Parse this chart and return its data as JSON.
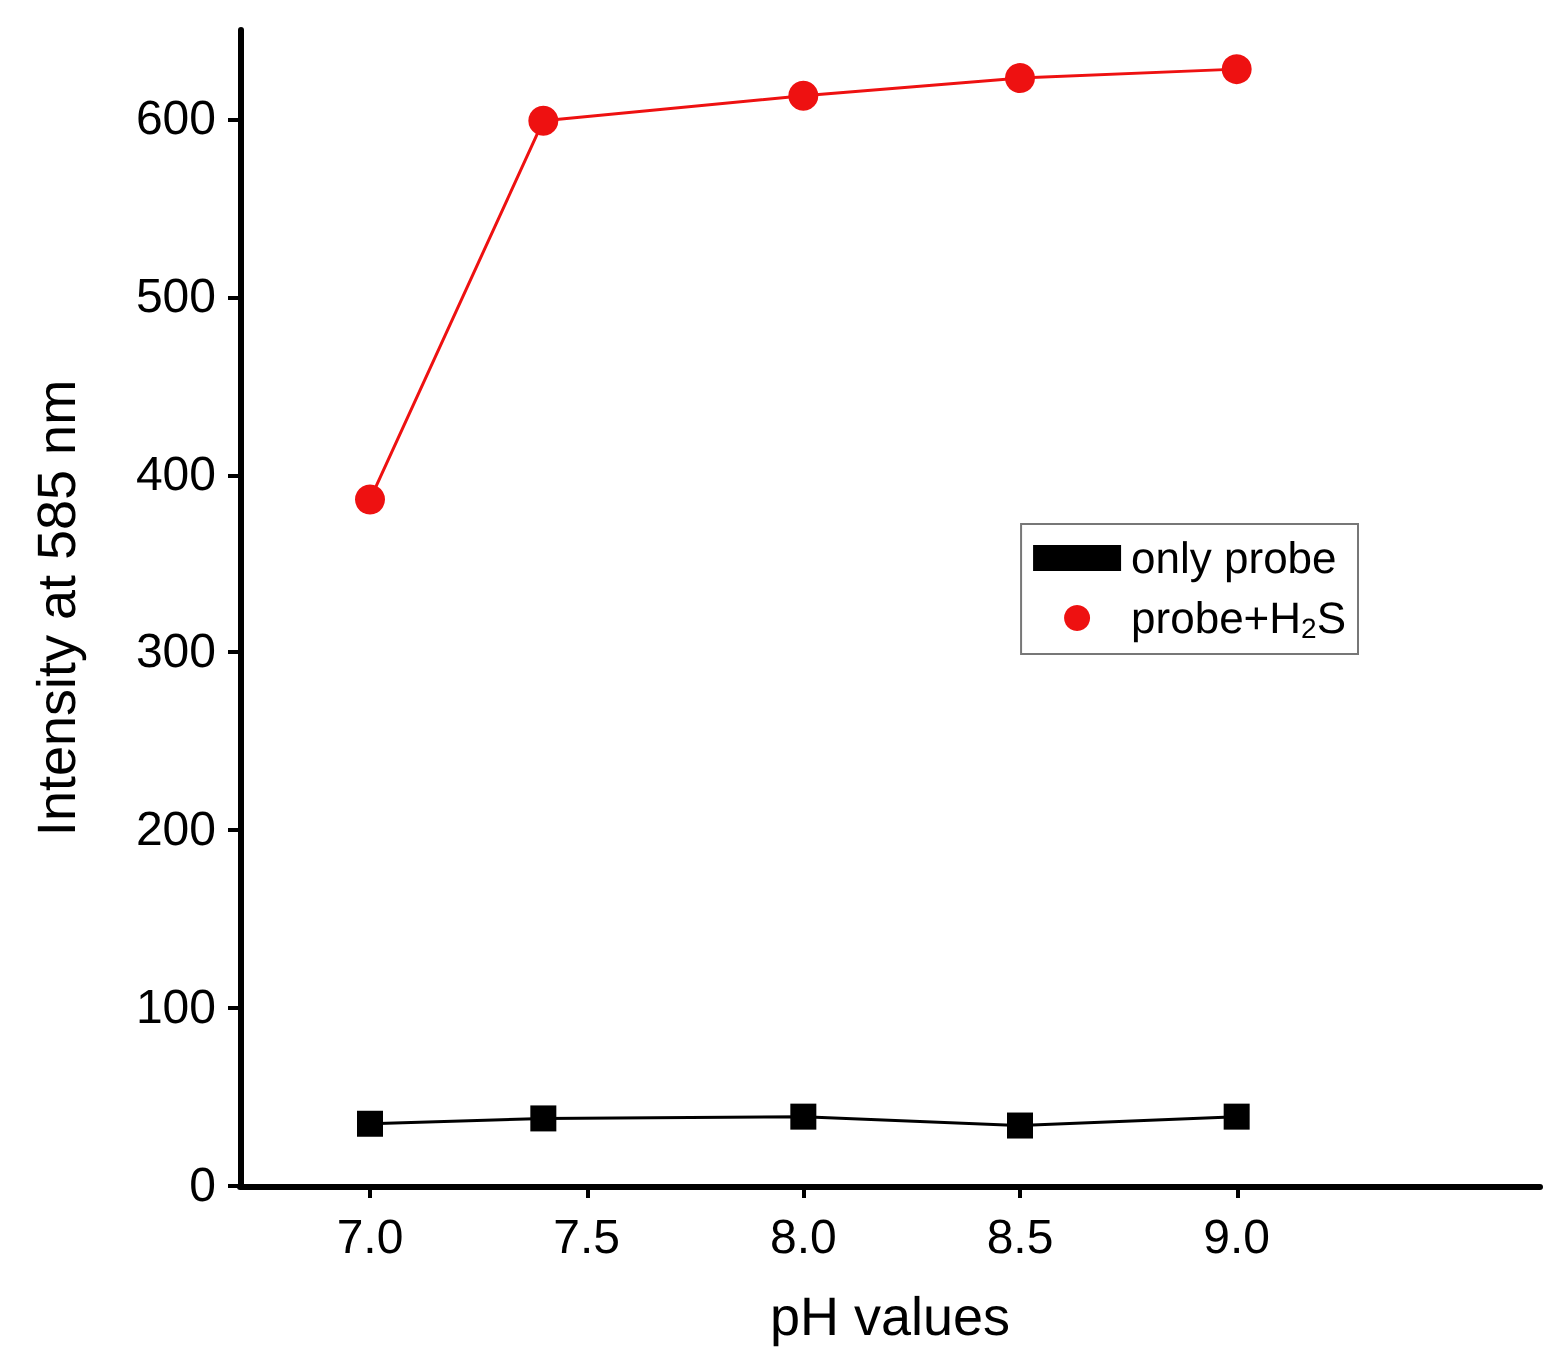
{
  "chart_data": {
    "type": "line",
    "xlabel": "pH values",
    "ylabel": "Intensity at 585 nm",
    "x": [
      7.0,
      7.4,
      8.0,
      8.5,
      9.0
    ],
    "series": [
      {
        "name": "only probe",
        "color": "#000000",
        "marker": "square",
        "values": [
          35,
          38,
          39,
          34,
          39
        ]
      },
      {
        "name": "probe+H$_{2}$S",
        "color": "#ee1111",
        "marker": "circle",
        "values": [
          386,
          599,
          613,
          623,
          628
        ]
      }
    ],
    "xlim": [
      6.7,
      9.7
    ],
    "xticks": [
      {
        "value": 7.0,
        "label": "7.0"
      },
      {
        "value": 7.5,
        "label": "7.5"
      },
      {
        "value": 8.0,
        "label": "8.0"
      },
      {
        "value": 8.5,
        "label": "8.5"
      },
      {
        "value": 9.0,
        "label": "9.0"
      }
    ],
    "ylim": [
      0,
      650
    ],
    "yticks": [
      0,
      100,
      200,
      300,
      400,
      500,
      600
    ],
    "grid": false,
    "legend": "right",
    "line_style": "solid"
  }
}
